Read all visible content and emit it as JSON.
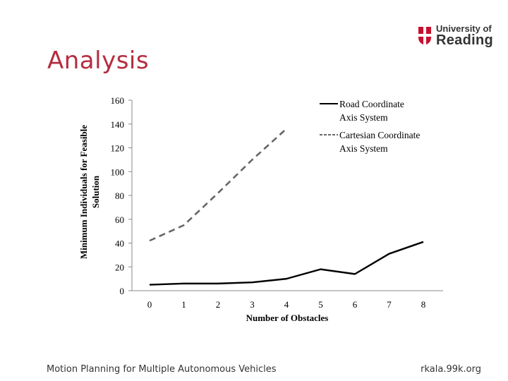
{
  "slide": {
    "title": "Analysis",
    "footer_left": "Motion Planning for Multiple Autonomous Vehicles",
    "footer_right": "rkala.99k.org",
    "title_color": "#b52d40"
  },
  "logo": {
    "line1": "University of",
    "line2": "Reading",
    "shield_color": "#c8102e"
  },
  "chart_data": {
    "type": "line",
    "title": "",
    "xlabel": "Number of Obstacles",
    "ylabel": "Minimum Individuals for Feasible Solution",
    "x": [
      0,
      1,
      2,
      3,
      4,
      5,
      6,
      7,
      8
    ],
    "x_tick_labels": [
      "0",
      "1",
      "2",
      "3",
      "4",
      "5",
      "6",
      "7",
      "8"
    ],
    "y_tick_labels": [
      "0",
      "20",
      "40",
      "60",
      "80",
      "100",
      "120",
      "140",
      "160"
    ],
    "ylim": [
      0,
      160
    ],
    "grid": false,
    "legend_position": "top-right",
    "series": [
      {
        "name": "Road Coordinate Axis System",
        "style": "solid",
        "color": "#000000",
        "x": [
          0,
          1,
          2,
          3,
          4,
          5,
          6,
          7,
          8
        ],
        "values": [
          5,
          6,
          6,
          7,
          10,
          18,
          14,
          31,
          41
        ]
      },
      {
        "name": "Cartesian Coordinate Axis System",
        "style": "dashed",
        "color": "#666666",
        "x": [
          0,
          1,
          2,
          3,
          4
        ],
        "values": [
          42,
          55,
          82,
          110,
          136
        ]
      }
    ]
  }
}
